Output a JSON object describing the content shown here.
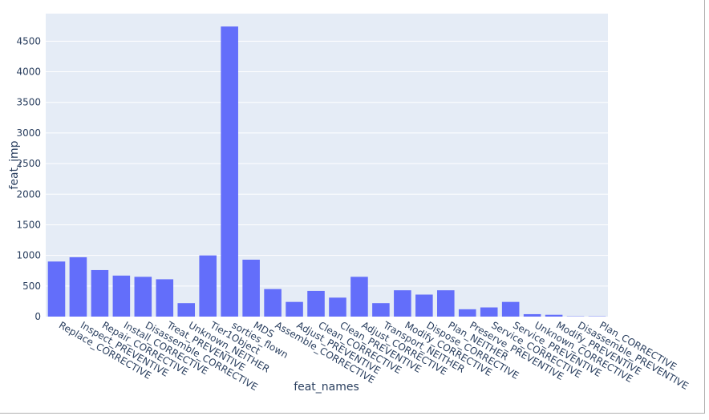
{
  "chart_data": {
    "type": "bar",
    "title": "",
    "xlabel": "feat_names",
    "ylabel": "feat_imp",
    "ylim": [
      0,
      4950
    ],
    "yticks": [
      0,
      500,
      1000,
      1500,
      2000,
      2500,
      3000,
      3500,
      4000,
      4500
    ],
    "grid": true,
    "bar_color": "#636efa",
    "plot_background": "#e5ecf6",
    "categories": [
      "Replace_CORRECTIVE",
      "Inspect_PREVENTIVE",
      "Repair_CORRECTIVE",
      "Install_CORRECTIVE",
      "Disassemble_CORRECTIVE",
      "Treat_PREVENTIVE",
      "Unknown_NEITHER",
      "Tier1Object",
      "sorties_flown",
      "MDS",
      "Assemble_CORRECTIVE",
      "Adjust_PREVENTIVE",
      "Clean_CORRECTIVE",
      "Clean_PREVENTIVE",
      "Adjust_CORRECTIVE",
      "Transport_NEITHER",
      "Modify_CORRECTIVE",
      "Dispose_CORRECTIVE",
      "Plan_NEITHER",
      "Preserve_PREVENTIVE",
      "Service_CORRECTIVE",
      "Service_PREVENTIVE",
      "Unknown_CORRECTIVE",
      "Modify_PREVENTIVE",
      "Disassemble_PREVENTIVE",
      "Plan_CORRECTIVE"
    ],
    "values": [
      900,
      970,
      760,
      670,
      650,
      610,
      220,
      1000,
      4740,
      930,
      450,
      240,
      420,
      310,
      650,
      220,
      430,
      360,
      430,
      120,
      150,
      240,
      40,
      30,
      5,
      5
    ]
  }
}
